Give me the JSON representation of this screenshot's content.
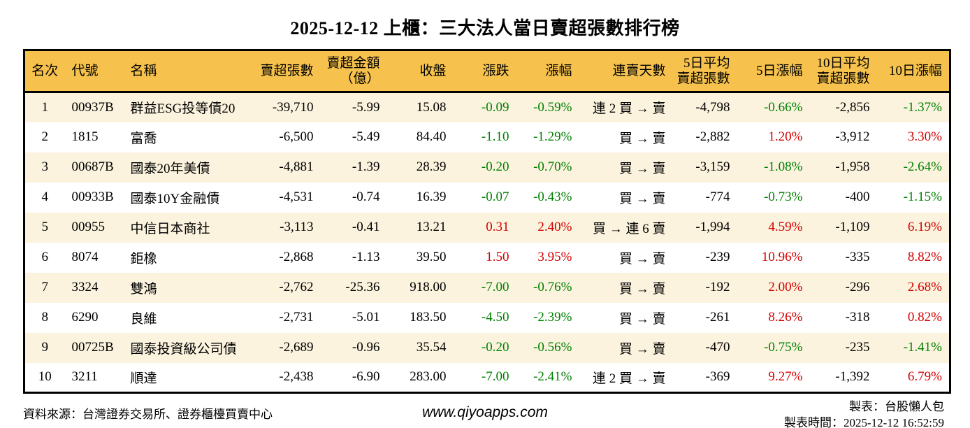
{
  "title": "2025-12-12 上櫃：三大法人當日賣超張數排行榜",
  "colors": {
    "up": "#d40000",
    "down": "#008000",
    "header_bg": "#f6c24d",
    "row_stripe": "#fbf3de"
  },
  "chart_data": {
    "type": "table",
    "title": "2025-12-12 上櫃：三大法人當日賣超張數排行榜",
    "columns": [
      {
        "key": "rank",
        "label": "名次",
        "signed": false
      },
      {
        "key": "code",
        "label": "代號",
        "signed": false
      },
      {
        "key": "name",
        "label": "名稱",
        "signed": false
      },
      {
        "key": "sell_vol",
        "label": "賣超張數",
        "signed": false
      },
      {
        "key": "sell_amt",
        "label": "賣超金額\n（億）",
        "signed": false
      },
      {
        "key": "close",
        "label": "收盤",
        "signed": false
      },
      {
        "key": "chg",
        "label": "漲跌",
        "signed": true
      },
      {
        "key": "chg_pct",
        "label": "漲幅",
        "signed": true
      },
      {
        "key": "streak",
        "label": "連賣天數",
        "signed": false
      },
      {
        "key": "avg5",
        "label": "5日平均\n賣超張數",
        "signed": false
      },
      {
        "key": "pct5",
        "label": "5日漲幅",
        "signed": true
      },
      {
        "key": "avg10",
        "label": "10日平均\n賣超張數",
        "signed": false
      },
      {
        "key": "pct10",
        "label": "10日漲幅",
        "signed": true
      }
    ],
    "rows": [
      {
        "rank": "1",
        "code": "00937B",
        "name": "群益ESG投等債20",
        "sell_vol": "-39,710",
        "sell_amt": "-5.99",
        "close": "15.08",
        "chg": "-0.09",
        "chg_pct": "-0.59%",
        "streak": "連 2 買 → 賣",
        "avg5": "-4,798",
        "pct5": "-0.66%",
        "avg10": "-2,856",
        "pct10": "-1.37%"
      },
      {
        "rank": "2",
        "code": "1815",
        "name": "富喬",
        "sell_vol": "-6,500",
        "sell_amt": "-5.49",
        "close": "84.40",
        "chg": "-1.10",
        "chg_pct": "-1.29%",
        "streak": "買 → 賣",
        "avg5": "-2,882",
        "pct5": "1.20%",
        "avg10": "-3,912",
        "pct10": "3.30%"
      },
      {
        "rank": "3",
        "code": "00687B",
        "name": "國泰20年美債",
        "sell_vol": "-4,881",
        "sell_amt": "-1.39",
        "close": "28.39",
        "chg": "-0.20",
        "chg_pct": "-0.70%",
        "streak": "買 → 賣",
        "avg5": "-3,159",
        "pct5": "-1.08%",
        "avg10": "-1,958",
        "pct10": "-2.64%"
      },
      {
        "rank": "4",
        "code": "00933B",
        "name": "國泰10Y金融債",
        "sell_vol": "-4,531",
        "sell_amt": "-0.74",
        "close": "16.39",
        "chg": "-0.07",
        "chg_pct": "-0.43%",
        "streak": "買 → 賣",
        "avg5": "-774",
        "pct5": "-0.73%",
        "avg10": "-400",
        "pct10": "-1.15%"
      },
      {
        "rank": "5",
        "code": "00955",
        "name": "中信日本商社",
        "sell_vol": "-3,113",
        "sell_amt": "-0.41",
        "close": "13.21",
        "chg": "0.31",
        "chg_pct": "2.40%",
        "streak": "買 → 連 6 賣",
        "avg5": "-1,994",
        "pct5": "4.59%",
        "avg10": "-1,109",
        "pct10": "6.19%"
      },
      {
        "rank": "6",
        "code": "8074",
        "name": "鉅橡",
        "sell_vol": "-2,868",
        "sell_amt": "-1.13",
        "close": "39.50",
        "chg": "1.50",
        "chg_pct": "3.95%",
        "streak": "買 → 賣",
        "avg5": "-239",
        "pct5": "10.96%",
        "avg10": "-335",
        "pct10": "8.82%"
      },
      {
        "rank": "7",
        "code": "3324",
        "name": "雙鴻",
        "sell_vol": "-2,762",
        "sell_amt": "-25.36",
        "close": "918.00",
        "chg": "-7.00",
        "chg_pct": "-0.76%",
        "streak": "買 → 賣",
        "avg5": "-192",
        "pct5": "2.00%",
        "avg10": "-296",
        "pct10": "2.68%"
      },
      {
        "rank": "8",
        "code": "6290",
        "name": "良維",
        "sell_vol": "-2,731",
        "sell_amt": "-5.01",
        "close": "183.50",
        "chg": "-4.50",
        "chg_pct": "-2.39%",
        "streak": "買 → 賣",
        "avg5": "-261",
        "pct5": "8.26%",
        "avg10": "-318",
        "pct10": "0.82%"
      },
      {
        "rank": "9",
        "code": "00725B",
        "name": "國泰投資級公司債",
        "sell_vol": "-2,689",
        "sell_amt": "-0.96",
        "close": "35.54",
        "chg": "-0.20",
        "chg_pct": "-0.56%",
        "streak": "買 → 賣",
        "avg5": "-470",
        "pct5": "-0.75%",
        "avg10": "-235",
        "pct10": "-1.41%"
      },
      {
        "rank": "10",
        "code": "3211",
        "name": "順達",
        "sell_vol": "-2,438",
        "sell_amt": "-6.90",
        "close": "283.00",
        "chg": "-7.00",
        "chg_pct": "-2.41%",
        "streak": "連 2 買 → 賣",
        "avg5": "-369",
        "pct5": "9.27%",
        "avg10": "-1,392",
        "pct10": "6.79%"
      }
    ],
    "legend_position": "none",
    "grid": false
  },
  "footer": {
    "source": "資料來源：台灣證券交易所、證券櫃檯買賣中心",
    "website": "www.qiyoapps.com",
    "credit": "製表：台股懶人包",
    "generated_at": "製表時間：2025-12-12 16:52:59"
  }
}
